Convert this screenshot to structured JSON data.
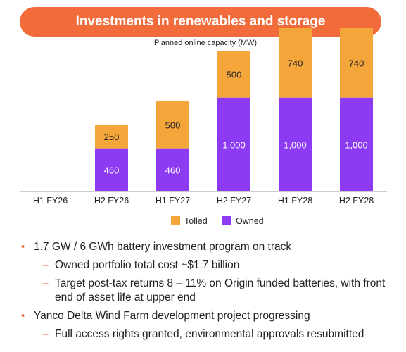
{
  "header": {
    "title": "Investments in renewables and storage"
  },
  "chart_data": {
    "type": "bar",
    "stacked": true,
    "title": "Planned online capacity (MW)",
    "categories": [
      "H1 FY26",
      "H2 FY26",
      "H1 FY27",
      "H2 FY27",
      "H1 FY28",
      "H2 FY28"
    ],
    "series": [
      {
        "name": "Owned",
        "color": "#8c3bf2",
        "values": [
          0,
          460,
          460,
          1000,
          1000,
          1000
        ],
        "labels": [
          "",
          "460",
          "460",
          "1,000",
          "1,000",
          "1,000"
        ]
      },
      {
        "name": "Tolled",
        "color": "#f4a63a",
        "values": [
          0,
          250,
          500,
          500,
          740,
          740
        ],
        "labels": [
          "",
          "250",
          "500",
          "500",
          "740",
          "740"
        ]
      }
    ],
    "legend": [
      "Tolled",
      "Owned"
    ],
    "legend_position": "bottom",
    "ylim": [
      0,
      1800
    ],
    "grid": false
  },
  "bullets": {
    "b1": "1.7 GW / 6 GWh battery investment program on track",
    "b1_1": "Owned portfolio total cost ~$1.7 billion",
    "b1_2": "Target post-tax returns 8 – 11% on Origin funded batteries, with front end of asset life at upper end",
    "b2": "Yanco Delta Wind Farm development project progressing",
    "b2_1": "Full access rights granted, environmental approvals resubmitted",
    "dot_symbol": "•",
    "dash_symbol": "–"
  }
}
